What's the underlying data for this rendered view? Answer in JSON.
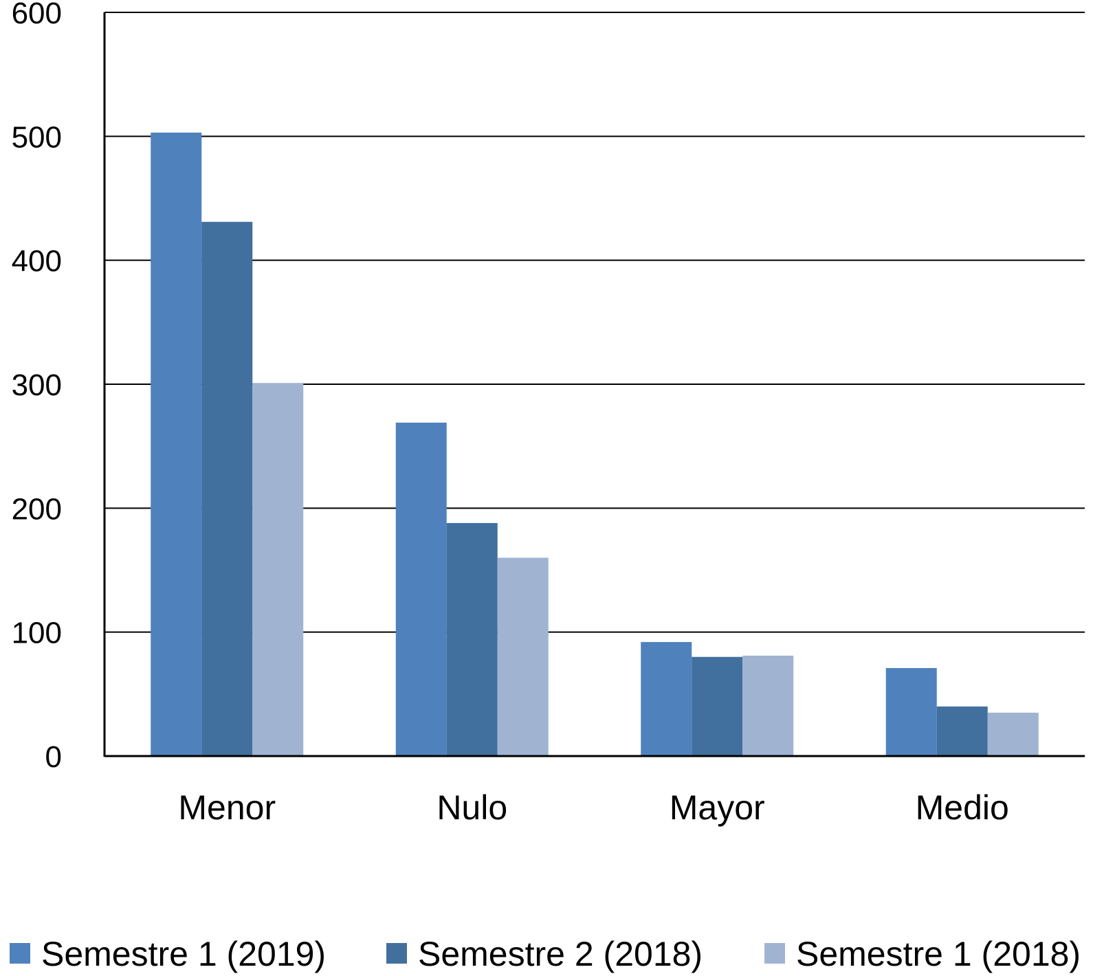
{
  "chart_data": {
    "type": "bar",
    "title": "",
    "xlabel": "",
    "ylabel": "",
    "ylim": [
      0,
      600
    ],
    "yticks": [
      0,
      100,
      200,
      300,
      400,
      500,
      600
    ],
    "grid": true,
    "legend_position": "bottom",
    "categories": [
      "Menor",
      "Nulo",
      "Mayor",
      "Medio"
    ],
    "series": [
      {
        "name": "Semestre 1 (2019)",
        "color": "#4f81bd",
        "values": [
          503,
          269,
          92,
          71
        ]
      },
      {
        "name": "Semestre 2 (2018)",
        "color": "#41709f",
        "values": [
          431,
          188,
          80,
          40
        ]
      },
      {
        "name": "Semestre 1 (2018)",
        "color": "#a0b4d2",
        "values": [
          301,
          160,
          81,
          35
        ]
      }
    ]
  }
}
